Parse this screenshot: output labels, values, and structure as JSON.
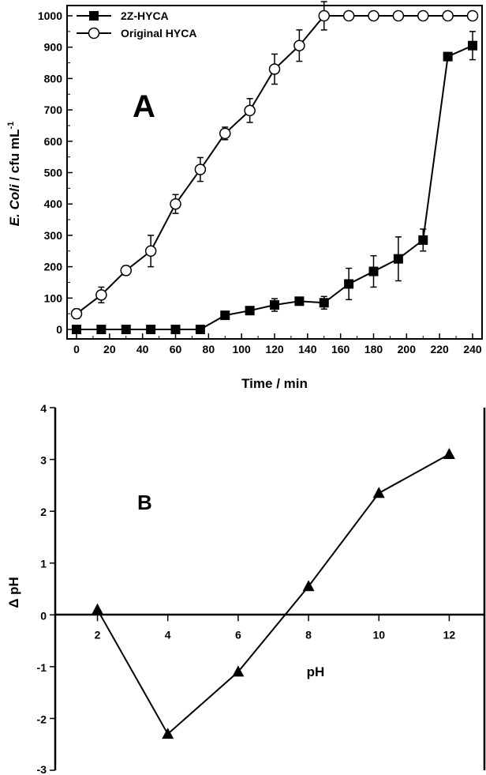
{
  "chart_data": [
    {
      "type": "line",
      "panel_label": "A",
      "xlabel": "Time / min",
      "ylabel_parts": {
        "italic": "E. Coli",
        "rest": " / cfu mL",
        "sup": "-1"
      },
      "xlim": [
        0,
        240
      ],
      "ylim": [
        0,
        1000
      ],
      "xticks": [
        0,
        20,
        40,
        60,
        80,
        100,
        120,
        140,
        160,
        180,
        200,
        220,
        240
      ],
      "yticks": [
        0,
        100,
        200,
        300,
        400,
        500,
        600,
        700,
        800,
        900,
        1000
      ],
      "legend_position": "top-left",
      "series": [
        {
          "name": "2Z-HYCA",
          "marker": "filled-square",
          "x": [
            0,
            15,
            30,
            45,
            60,
            75,
            90,
            105,
            120,
            135,
            150,
            165,
            180,
            195,
            210,
            225,
            240
          ],
          "y": [
            0,
            0,
            0,
            0,
            0,
            0,
            45,
            60,
            78,
            90,
            85,
            145,
            185,
            225,
            285,
            870,
            905
          ],
          "err": [
            0,
            0,
            0,
            0,
            0,
            0,
            10,
            12,
            20,
            12,
            20,
            50,
            50,
            70,
            35,
            0,
            45
          ]
        },
        {
          "name": "Original HYCA",
          "marker": "open-circle",
          "x": [
            0,
            15,
            30,
            45,
            60,
            75,
            90,
            105,
            120,
            135,
            150,
            165,
            180,
            195,
            210,
            225,
            240
          ],
          "y": [
            50,
            110,
            188,
            250,
            400,
            510,
            625,
            698,
            830,
            905,
            1000,
            1000,
            1000,
            1000,
            1000,
            1000,
            1000
          ],
          "err": [
            15,
            25,
            15,
            50,
            30,
            38,
            20,
            38,
            48,
            50,
            45,
            0,
            0,
            0,
            0,
            0,
            0
          ]
        }
      ]
    },
    {
      "type": "line",
      "panel_label": "B",
      "xlabel": "pH",
      "ylabel": "Δ pH",
      "xlim": [
        0.8,
        13
      ],
      "ylim": [
        -3,
        4
      ],
      "xticks": [
        2,
        4,
        6,
        8,
        10,
        12
      ],
      "yticks": [
        -3,
        -2,
        -1,
        0,
        1,
        2,
        3,
        4
      ],
      "series": [
        {
          "name": "Δ pH",
          "marker": "filled-triangle",
          "x": [
            2,
            4,
            6,
            8,
            10,
            12
          ],
          "y": [
            0.1,
            -2.3,
            -1.1,
            0.55,
            2.35,
            3.1
          ]
        }
      ]
    }
  ]
}
